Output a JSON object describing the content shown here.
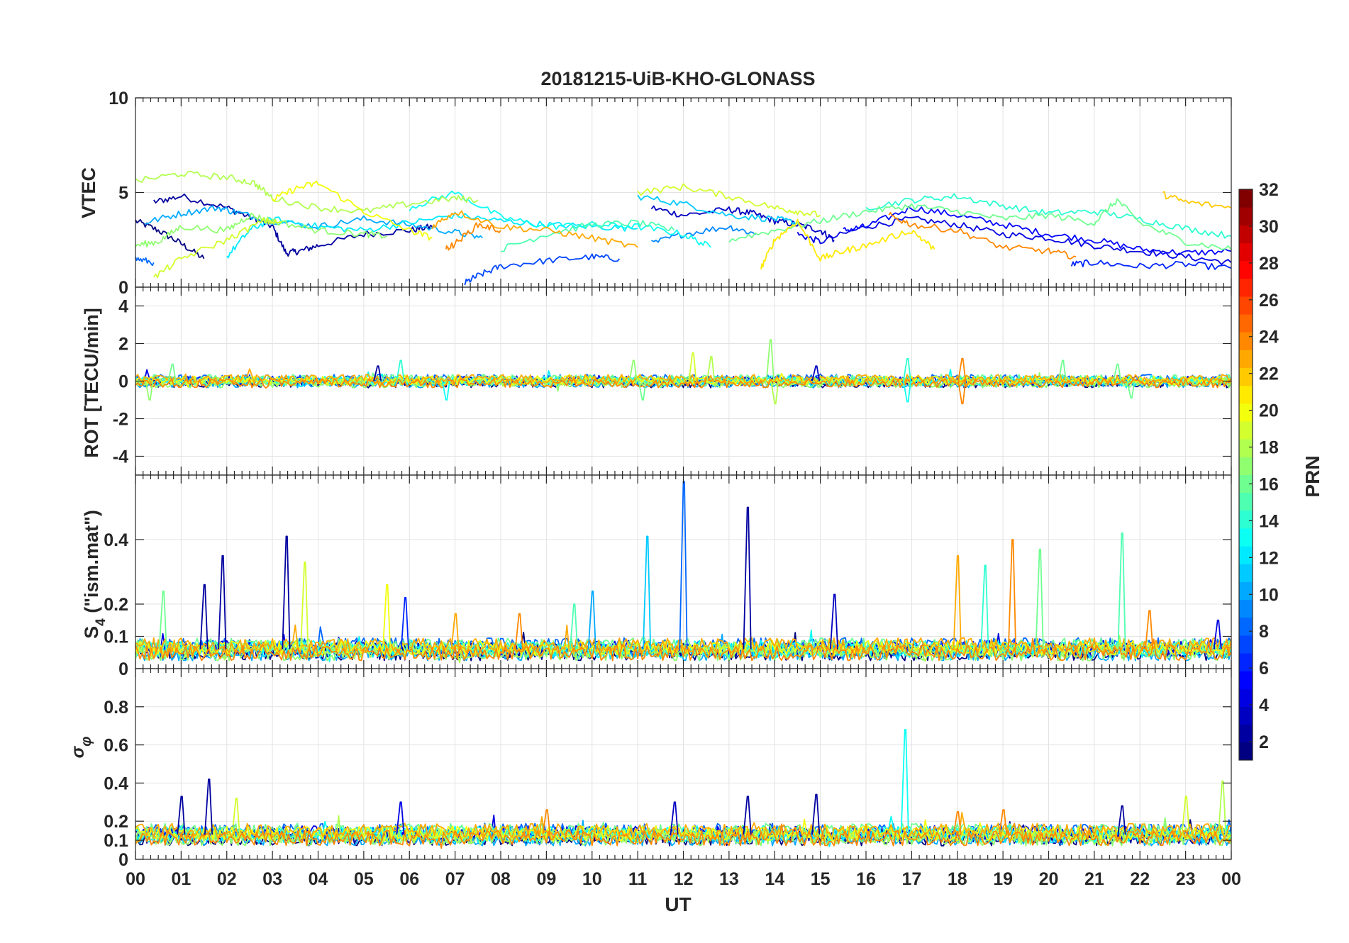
{
  "figure": {
    "title": "20181215-UiB-KHO-GLONASS",
    "xlabel": "UT",
    "x_tick_labels": [
      "00",
      "01",
      "02",
      "03",
      "04",
      "05",
      "06",
      "07",
      "08",
      "09",
      "10",
      "11",
      "12",
      "13",
      "14",
      "15",
      "16",
      "17",
      "18",
      "19",
      "20",
      "21",
      "22",
      "23",
      "00"
    ]
  },
  "colorbar": {
    "label": "PRN",
    "range": [
      1,
      32
    ],
    "tick_labels": [
      "2",
      "4",
      "6",
      "8",
      "10",
      "12",
      "14",
      "16",
      "18",
      "20",
      "22",
      "24",
      "26",
      "28",
      "30",
      "32"
    ],
    "colormap": "jet",
    "colors": [
      "#00008f",
      "#0000ff",
      "#0080ff",
      "#00ffff",
      "#80ff80",
      "#ffff00",
      "#ff8000",
      "#ff0000",
      "#800000"
    ]
  },
  "chart_data": [
    {
      "type": "line",
      "panel": "vtec",
      "ylabel": "VTEC",
      "xlim": [
        0,
        24
      ],
      "ylim": [
        0,
        10
      ],
      "y_tick_labels": [
        "0",
        "5",
        "10"
      ],
      "grid": true,
      "series": [
        {
          "prn": 1,
          "x": [
            0,
            0.5,
            1,
            1.5
          ],
          "y": [
            3.5,
            3.0,
            2.3,
            1.5
          ]
        },
        {
          "prn": 2,
          "x": [
            0.4,
            1,
            2,
            2.6,
            3,
            3.3,
            3.6,
            4,
            5,
            6,
            6.5
          ],
          "y": [
            4.5,
            4.8,
            4.2,
            3.6,
            3.2,
            1.8,
            1.9,
            2.2,
            2.8,
            3.0,
            3.2
          ]
        },
        {
          "prn": 3,
          "x": [
            11.3,
            12,
            13,
            13.5,
            14,
            14.5,
            15,
            15.3
          ],
          "y": [
            4.2,
            3.8,
            4.1,
            3.9,
            3.5,
            3.3,
            3.0,
            2.5
          ]
        },
        {
          "prn": 4,
          "x": [
            14.5,
            15,
            16,
            17,
            18,
            19,
            20,
            21,
            22,
            23,
            24
          ],
          "y": [
            2.8,
            2.4,
            3.2,
            3.6,
            3.3,
            2.8,
            2.6,
            2.2,
            1.9,
            1.6,
            1.3
          ]
        },
        {
          "prn": 5,
          "x": [
            15.5,
            16,
            17,
            18,
            19,
            20,
            21,
            22,
            23,
            24
          ],
          "y": [
            3.0,
            3.2,
            4.2,
            3.8,
            3.3,
            2.8,
            2.5,
            2.0,
            1.8,
            1.9
          ]
        },
        {
          "prn": 6,
          "x": [
            20.5,
            21,
            22,
            23,
            24
          ],
          "y": [
            1.2,
            1.3,
            1.1,
            1.2,
            1.0
          ]
        },
        {
          "prn": 7,
          "x": [
            7.2,
            7.5,
            8,
            9,
            10,
            10.6
          ],
          "y": [
            0.2,
            0.6,
            1.1,
            1.4,
            1.6,
            1.5
          ]
        },
        {
          "prn": 8,
          "x": [
            0,
            0.4
          ],
          "y": [
            1.5,
            1.3
          ]
        },
        {
          "prn": 9,
          "x": [
            11.3,
            12,
            13,
            13.6
          ],
          "y": [
            2.3,
            2.8,
            3.2,
            2.8
          ]
        },
        {
          "prn": 10,
          "x": [
            0.2,
            1,
            1.8,
            2.3,
            3,
            4,
            5,
            6,
            7,
            7.6
          ],
          "y": [
            3.4,
            3.9,
            4.2,
            3.9,
            3.5,
            3.2,
            3.6,
            3.3,
            2.9,
            2.6
          ]
        },
        {
          "prn": 11,
          "x": [
            11,
            12,
            13,
            14,
            14.5
          ],
          "y": [
            4.8,
            4.4,
            3.8,
            3.6,
            3.4
          ]
        },
        {
          "prn": 12,
          "x": [
            2,
            2.5,
            3,
            4,
            5,
            6,
            7,
            8,
            9,
            10,
            11
          ],
          "y": [
            1.6,
            3.0,
            3.6,
            3.2,
            3.0,
            3.4,
            3.8,
            3.5,
            3.3,
            3.2,
            3.1
          ]
        },
        {
          "prn": 13,
          "x": [
            6,
            7,
            8,
            9,
            10,
            11,
            12,
            12.6
          ],
          "y": [
            4.2,
            5.0,
            3.7,
            3.2,
            3.3,
            3.2,
            2.8,
            2.1
          ]
        },
        {
          "prn": 14,
          "x": [
            16,
            17,
            18,
            19,
            20,
            21,
            22,
            23,
            24
          ],
          "y": [
            4.2,
            4.6,
            4.8,
            4.3,
            3.9,
            4.0,
            3.6,
            3.1,
            2.7
          ]
        },
        {
          "prn": 15,
          "x": [
            8,
            9,
            10,
            11,
            11.8
          ],
          "y": [
            2.0,
            2.8,
            3.3,
            3.4,
            3.0
          ]
        },
        {
          "prn": 16,
          "x": [
            13,
            14,
            15,
            16,
            17,
            18,
            19,
            20,
            21,
            21.5,
            22,
            23,
            24
          ],
          "y": [
            2.5,
            3.0,
            3.5,
            4.0,
            4.3,
            4.0,
            3.6,
            3.8,
            3.4,
            4.6,
            3.4,
            2.4,
            2.0
          ]
        },
        {
          "prn": 17,
          "x": [
            0,
            0.5,
            1,
            2,
            2.5,
            3,
            4,
            5,
            5.5
          ],
          "y": [
            2.2,
            2.4,
            3.2,
            3.0,
            3.8,
            3.5,
            3.0,
            2.8,
            2.7
          ]
        },
        {
          "prn": 18,
          "x": [
            0,
            1,
            2,
            2.6,
            3,
            4,
            5,
            6,
            7,
            7.5
          ],
          "y": [
            5.6,
            6.0,
            5.8,
            5.5,
            4.7,
            4.2,
            4.0,
            4.4,
            4.7,
            4.6
          ]
        },
        {
          "prn": 19,
          "x": [
            11,
            12,
            13,
            14,
            14.5,
            15
          ],
          "y": [
            5.0,
            5.3,
            4.8,
            4.2,
            4.0,
            3.8
          ]
        },
        {
          "prn": 20,
          "x": [
            3,
            3.5,
            4,
            5,
            6,
            6.5
          ],
          "y": [
            4.6,
            5.2,
            5.5,
            4.0,
            3.0,
            2.6
          ]
        },
        {
          "prn": 21,
          "x": [
            13.7,
            14,
            14.5,
            15,
            15.5,
            16,
            17,
            17.5
          ],
          "y": [
            1.0,
            2.5,
            3.5,
            1.5,
            1.9,
            2.2,
            3.0,
            2.0
          ]
        },
        {
          "prn": 22,
          "x": [
            22.5,
            23,
            24
          ],
          "y": [
            4.9,
            4.5,
            4.2
          ]
        },
        {
          "prn": 23,
          "x": [
            6.5,
            7,
            8,
            9,
            10,
            11
          ],
          "y": [
            3.2,
            4.0,
            3.2,
            3.0,
            2.6,
            2.1
          ]
        },
        {
          "prn": 24,
          "x": [
            16.5,
            17,
            18,
            19,
            20,
            20.6
          ],
          "y": [
            3.8,
            3.3,
            3.0,
            2.1,
            1.9,
            1.6
          ]
        },
        {
          "prn": 24,
          "x": [
            6.8,
            7,
            7.5,
            8
          ],
          "y": [
            2.0,
            2.3,
            3.3,
            3.0
          ]
        },
        {
          "prn": 19,
          "x": [
            0.4,
            1,
            2,
            2.8,
            3.2
          ],
          "y": [
            0.5,
            1.5,
            2.5,
            3.5,
            3.4
          ]
        }
      ]
    },
    {
      "type": "line",
      "panel": "rot",
      "ylabel": "ROT [TECU/min]",
      "xlim": [
        0,
        24
      ],
      "ylim": [
        -5,
        5
      ],
      "y_tick_labels": [
        "-4",
        "-2",
        "0",
        "2",
        "4"
      ],
      "grid": true,
      "noise": {
        "baseline": 0.0,
        "typical_amplitude": 0.3
      },
      "spikes": [
        {
          "x": 0.3,
          "y": -1.0,
          "prn": 17
        },
        {
          "x": 0.8,
          "y": 0.9,
          "prn": 16
        },
        {
          "x": 5.3,
          "y": 0.8,
          "prn": 2
        },
        {
          "x": 5.8,
          "y": 1.1,
          "prn": 14
        },
        {
          "x": 6.8,
          "y": -1.0,
          "prn": 13
        },
        {
          "x": 10.9,
          "y": 1.1,
          "prn": 17
        },
        {
          "x": 11.1,
          "y": -1.0,
          "prn": 16
        },
        {
          "x": 12.2,
          "y": 1.5,
          "prn": 19
        },
        {
          "x": 12.6,
          "y": 1.3,
          "prn": 18
        },
        {
          "x": 13.9,
          "y": 2.2,
          "prn": 17
        },
        {
          "x": 14.0,
          "y": -1.2,
          "prn": 18
        },
        {
          "x": 14.9,
          "y": 0.8,
          "prn": 3
        },
        {
          "x": 16.9,
          "y": 1.2,
          "prn": 14
        },
        {
          "x": 16.9,
          "y": -1.1,
          "prn": 13
        },
        {
          "x": 18.1,
          "y": 1.2,
          "prn": 24
        },
        {
          "x": 18.1,
          "y": -1.2,
          "prn": 24
        },
        {
          "x": 20.3,
          "y": 1.1,
          "prn": 16
        },
        {
          "x": 21.5,
          "y": 0.9,
          "prn": 16
        },
        {
          "x": 21.8,
          "y": -0.9,
          "prn": 16
        }
      ]
    },
    {
      "type": "line",
      "panel": "s4",
      "ylabel": "S₄ (\"ism.mat\")",
      "ylabel_base": "S",
      "ylabel_sub": "4",
      "ylabel_rest": " (\"ism.mat\")",
      "xlim": [
        0,
        24
      ],
      "ylim": [
        0,
        0.6
      ],
      "y_tick_labels": [
        "0",
        "0.1",
        "0.2",
        "0.4"
      ],
      "y_tick_values": [
        0,
        0.1,
        0.2,
        0.4
      ],
      "grid": true,
      "noise": {
        "baseline": 0.06,
        "typical_amplitude": 0.03
      },
      "spikes": [
        {
          "x": 0.6,
          "y": 0.24,
          "prn": 16
        },
        {
          "x": 1.5,
          "y": 0.26,
          "prn": 2
        },
        {
          "x": 1.9,
          "y": 0.35,
          "prn": 2
        },
        {
          "x": 3.3,
          "y": 0.41,
          "prn": 2
        },
        {
          "x": 3.7,
          "y": 0.33,
          "prn": 19
        },
        {
          "x": 5.5,
          "y": 0.26,
          "prn": 20
        },
        {
          "x": 5.9,
          "y": 0.22,
          "prn": 6
        },
        {
          "x": 7.0,
          "y": 0.17,
          "prn": 23
        },
        {
          "x": 8.4,
          "y": 0.17,
          "prn": 24
        },
        {
          "x": 9.6,
          "y": 0.2,
          "prn": 15
        },
        {
          "x": 10.0,
          "y": 0.24,
          "prn": 10
        },
        {
          "x": 11.2,
          "y": 0.41,
          "prn": 11
        },
        {
          "x": 12.0,
          "y": 0.58,
          "prn": 8
        },
        {
          "x": 13.4,
          "y": 0.5,
          "prn": 2
        },
        {
          "x": 15.3,
          "y": 0.23,
          "prn": 3
        },
        {
          "x": 18.0,
          "y": 0.35,
          "prn": 23
        },
        {
          "x": 18.6,
          "y": 0.32,
          "prn": 14
        },
        {
          "x": 19.2,
          "y": 0.4,
          "prn": 24
        },
        {
          "x": 19.8,
          "y": 0.37,
          "prn": 16
        },
        {
          "x": 21.6,
          "y": 0.42,
          "prn": 15
        },
        {
          "x": 22.2,
          "y": 0.18,
          "prn": 24
        },
        {
          "x": 23.7,
          "y": 0.15,
          "prn": 4
        }
      ]
    },
    {
      "type": "line",
      "panel": "sigma_phi",
      "ylabel": "σ φ",
      "ylabel_base": "σ",
      "ylabel_sub": "φ",
      "xlim": [
        0,
        24
      ],
      "ylim": [
        0,
        1
      ],
      "y_tick_labels": [
        "0",
        "0.1",
        "0.2",
        "0.4",
        "0.6",
        "0.8"
      ],
      "y_tick_values": [
        0,
        0.1,
        0.2,
        0.4,
        0.6,
        0.8
      ],
      "grid": true,
      "noise": {
        "baseline": 0.13,
        "typical_amplitude": 0.05
      },
      "spikes": [
        {
          "x": 1.0,
          "y": 0.33,
          "prn": 2
        },
        {
          "x": 1.6,
          "y": 0.42,
          "prn": 2
        },
        {
          "x": 2.2,
          "y": 0.32,
          "prn": 19
        },
        {
          "x": 5.8,
          "y": 0.3,
          "prn": 4
        },
        {
          "x": 9.0,
          "y": 0.26,
          "prn": 24
        },
        {
          "x": 11.8,
          "y": 0.3,
          "prn": 3
        },
        {
          "x": 13.4,
          "y": 0.33,
          "prn": 2
        },
        {
          "x": 14.9,
          "y": 0.34,
          "prn": 2
        },
        {
          "x": 16.85,
          "y": 0.68,
          "prn": 13
        },
        {
          "x": 18.0,
          "y": 0.25,
          "prn": 24
        },
        {
          "x": 19.0,
          "y": 0.26,
          "prn": 24
        },
        {
          "x": 21.6,
          "y": 0.28,
          "prn": 2
        },
        {
          "x": 23.0,
          "y": 0.33,
          "prn": 19
        },
        {
          "x": 23.8,
          "y": 0.41,
          "prn": 18
        }
      ]
    }
  ]
}
